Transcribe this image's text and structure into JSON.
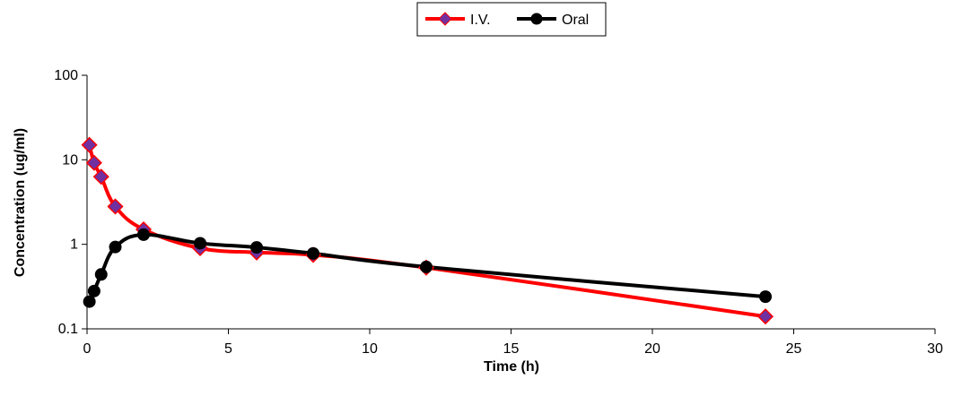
{
  "chart_data": {
    "type": "line",
    "x_scale": "linear",
    "y_scale": "log",
    "xlabel": "Time (h)",
    "ylabel": "Concentration (ug/ml)",
    "xlim": [
      0,
      30
    ],
    "ylim": [
      0.1,
      100
    ],
    "x_ticks": [
      "0",
      "5",
      "10",
      "15",
      "20",
      "25",
      "30"
    ],
    "y_ticks": [
      "0.1",
      "1",
      "10",
      "100"
    ],
    "grid": false,
    "legend_position": "top-center",
    "series": [
      {
        "name": "I.V.",
        "color": "#ff0000",
        "marker": "diamond",
        "marker_fill": "#7030a0",
        "x": [
          0.083,
          0.25,
          0.5,
          1,
          2,
          4,
          6,
          8,
          12,
          24
        ],
        "y": [
          15,
          9.2,
          6.3,
          2.8,
          1.5,
          0.9,
          0.8,
          0.75,
          0.53,
          0.14
        ]
      },
      {
        "name": "Oral",
        "color": "#000000",
        "marker": "circle",
        "marker_fill": "#000000",
        "x": [
          0.083,
          0.25,
          0.5,
          1,
          2,
          4,
          6,
          8,
          12,
          24
        ],
        "y": [
          0.21,
          0.28,
          0.44,
          0.93,
          1.3,
          1.03,
          0.92,
          0.78,
          0.54,
          0.24
        ]
      }
    ]
  }
}
